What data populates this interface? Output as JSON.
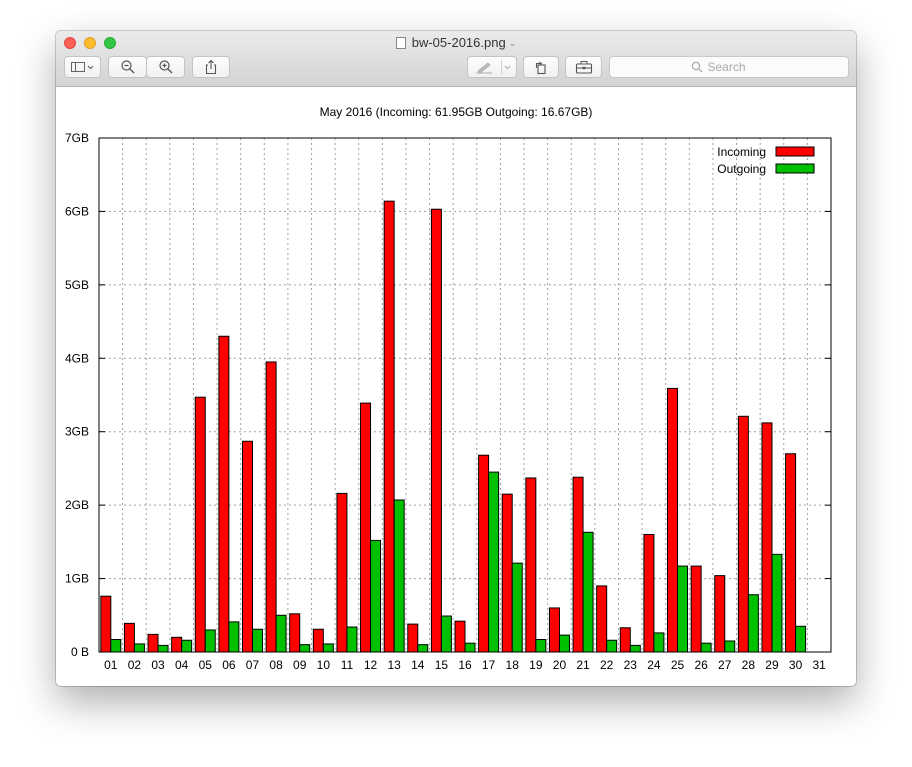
{
  "window": {
    "filename": "bw-05-2016.png",
    "search_placeholder": "Search"
  },
  "icons": {
    "sidebar": "sidebar-icon",
    "zoom_out": "zoom-out-icon",
    "zoom_in": "zoom-in-icon",
    "share": "share-icon",
    "markup": "pen-icon",
    "rotate": "rotate-icon",
    "toolbox": "toolbox-icon",
    "search": "search-icon"
  },
  "colors": {
    "incoming": "#ff0000",
    "outgoing": "#00c000"
  },
  "chart_data": {
    "type": "bar",
    "title": "May 2016 (Incoming: 61.95GB Outgoing: 16.67GB)",
    "xlabel": "",
    "ylabel": "",
    "ylim": [
      0,
      7
    ],
    "y_ticks": [
      0,
      1,
      2,
      3,
      4,
      5,
      6,
      7
    ],
    "y_tick_labels": [
      "0 B",
      "1GB",
      "2GB",
      "3GB",
      "4GB",
      "5GB",
      "6GB",
      "7GB"
    ],
    "grid": true,
    "legend_position": "top-right",
    "categories": [
      "01",
      "02",
      "03",
      "04",
      "05",
      "06",
      "07",
      "08",
      "09",
      "10",
      "11",
      "12",
      "13",
      "14",
      "15",
      "16",
      "17",
      "18",
      "19",
      "20",
      "21",
      "22",
      "23",
      "24",
      "25",
      "26",
      "27",
      "28",
      "29",
      "30",
      "31"
    ],
    "series": [
      {
        "name": "Incoming",
        "color": "#ff0000",
        "values": [
          0.76,
          0.39,
          0.24,
          0.2,
          3.47,
          4.3,
          2.87,
          3.95,
          0.52,
          0.31,
          2.16,
          3.39,
          6.14,
          0.38,
          6.03,
          0.42,
          2.68,
          2.15,
          2.37,
          0.6,
          2.38,
          0.9,
          0.33,
          1.6,
          3.59,
          1.17,
          1.04,
          3.21,
          3.12,
          2.7,
          0
        ]
      },
      {
        "name": "Outgoing",
        "color": "#00c000",
        "values": [
          0.17,
          0.11,
          0.09,
          0.16,
          0.3,
          0.41,
          0.31,
          0.5,
          0.1,
          0.11,
          0.34,
          1.52,
          2.07,
          0.1,
          0.49,
          0.12,
          2.45,
          1.21,
          0.17,
          0.23,
          1.63,
          0.16,
          0.09,
          0.26,
          1.17,
          0.12,
          0.15,
          0.78,
          1.33,
          0.35,
          0
        ]
      }
    ]
  }
}
